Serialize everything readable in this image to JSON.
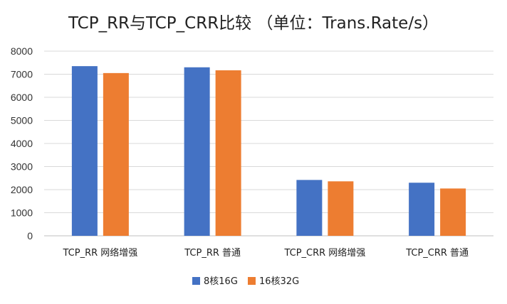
{
  "chart_data": {
    "type": "bar",
    "title": "TCP_RR与TCP_CRR比较 （单位：Trans.Rate/s）",
    "categories": [
      "TCP_RR 网络增强",
      "TCP_RR 普通",
      "TCP_CRR 网络增强",
      "TCP_CRR 普通"
    ],
    "series": [
      {
        "name": "8核16G",
        "color": "#4472C4",
        "values": [
          7350,
          7300,
          2420,
          2300
        ]
      },
      {
        "name": "16核32G",
        "color": "#ED7D31",
        "values": [
          7050,
          7170,
          2360,
          2050
        ]
      }
    ],
    "ylim": [
      0,
      8000
    ],
    "yticks": [
      0,
      1000,
      2000,
      3000,
      4000,
      5000,
      6000,
      7000,
      8000
    ],
    "grid": true,
    "legend": "bottom"
  }
}
